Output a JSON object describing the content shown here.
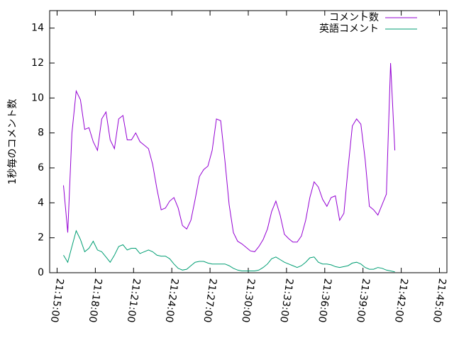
{
  "chart_data": {
    "type": "line",
    "ylabel": "1秒毎のコメント数",
    "x": [
      "21:15:30",
      "21:15:50",
      "21:16:10",
      "21:16:30",
      "21:16:50",
      "21:17:10",
      "21:17:30",
      "21:17:50",
      "21:18:10",
      "21:18:30",
      "21:18:50",
      "21:19:10",
      "21:19:30",
      "21:19:50",
      "21:20:10",
      "21:20:30",
      "21:20:50",
      "21:21:10",
      "21:21:30",
      "21:21:50",
      "21:22:10",
      "21:22:30",
      "21:22:50",
      "21:23:10",
      "21:23:30",
      "21:23:50",
      "21:24:10",
      "21:24:30",
      "21:24:50",
      "21:25:10",
      "21:25:30",
      "21:25:50",
      "21:26:10",
      "21:26:30",
      "21:26:50",
      "21:27:10",
      "21:27:30",
      "21:27:50",
      "21:28:10",
      "21:28:30",
      "21:28:50",
      "21:29:10",
      "21:29:30",
      "21:29:50",
      "21:30:10",
      "21:30:30",
      "21:30:50",
      "21:31:10",
      "21:31:30",
      "21:31:50",
      "21:32:10",
      "21:32:30",
      "21:32:50",
      "21:33:10",
      "21:33:30",
      "21:33:50",
      "21:34:10",
      "21:34:30",
      "21:34:50",
      "21:35:10",
      "21:35:30",
      "21:35:50",
      "21:36:10",
      "21:36:30",
      "21:36:50",
      "21:37:10",
      "21:37:30",
      "21:37:50",
      "21:38:10",
      "21:38:30",
      "21:38:50",
      "21:39:10",
      "21:39:30",
      "21:39:50",
      "21:40:10",
      "21:40:30",
      "21:40:50",
      "21:41:10",
      "21:41:30"
    ],
    "series": [
      {
        "name": "コメント数",
        "color": "#9400d3",
        "values": [
          5.0,
          2.3,
          8.0,
          10.4,
          9.9,
          8.2,
          8.3,
          7.5,
          7.0,
          8.8,
          9.2,
          7.6,
          7.1,
          8.8,
          9.0,
          7.6,
          7.6,
          8.0,
          7.5,
          7.3,
          7.1,
          6.2,
          4.8,
          3.6,
          3.7,
          4.1,
          4.3,
          3.7,
          2.7,
          2.5,
          3.0,
          4.2,
          5.5,
          5.9,
          6.1,
          7.0,
          8.8,
          8.7,
          6.4,
          3.9,
          2.3,
          1.8,
          1.65,
          1.45,
          1.25,
          1.2,
          1.5,
          1.9,
          2.5,
          3.5,
          4.1,
          3.3,
          2.2,
          1.95,
          1.75,
          1.75,
          2.1,
          3.0,
          4.3,
          5.2,
          4.9,
          4.2,
          3.8,
          4.3,
          4.4,
          3.0,
          3.4,
          6.0,
          8.4,
          8.8,
          8.5,
          6.5,
          3.8,
          3.6,
          3.3,
          3.9,
          4.5,
          12.0,
          7.0
        ]
      },
      {
        "name": "英語コメント",
        "color": "#009e73",
        "values": [
          1.0,
          0.6,
          1.5,
          2.4,
          1.9,
          1.2,
          1.4,
          1.8,
          1.3,
          1.2,
          0.9,
          0.6,
          1.0,
          1.5,
          1.6,
          1.3,
          1.4,
          1.4,
          1.1,
          1.2,
          1.3,
          1.2,
          1.0,
          0.95,
          0.95,
          0.8,
          0.5,
          0.25,
          0.15,
          0.2,
          0.4,
          0.6,
          0.65,
          0.65,
          0.55,
          0.5,
          0.5,
          0.5,
          0.5,
          0.4,
          0.25,
          0.15,
          0.1,
          0.1,
          0.1,
          0.1,
          0.15,
          0.3,
          0.5,
          0.8,
          0.9,
          0.75,
          0.6,
          0.5,
          0.4,
          0.3,
          0.4,
          0.6,
          0.85,
          0.9,
          0.6,
          0.5,
          0.5,
          0.45,
          0.35,
          0.3,
          0.35,
          0.4,
          0.55,
          0.6,
          0.5,
          0.3,
          0.2,
          0.2,
          0.3,
          0.25,
          0.15,
          0.1,
          0.05
        ]
      }
    ],
    "xlim": [
      "21:14:25",
      "21:45:35"
    ],
    "xticks": [
      "21:15:00",
      "21:18:00",
      "21:21:00",
      "21:24:00",
      "21:27:00",
      "21:30:00",
      "21:33:00",
      "21:36:00",
      "21:39:00",
      "21:42:00",
      "21:45:00"
    ],
    "ylim": [
      0,
      15
    ],
    "yticks": [
      0,
      2,
      4,
      6,
      8,
      10,
      12,
      14
    ],
    "legend": "top-right"
  }
}
